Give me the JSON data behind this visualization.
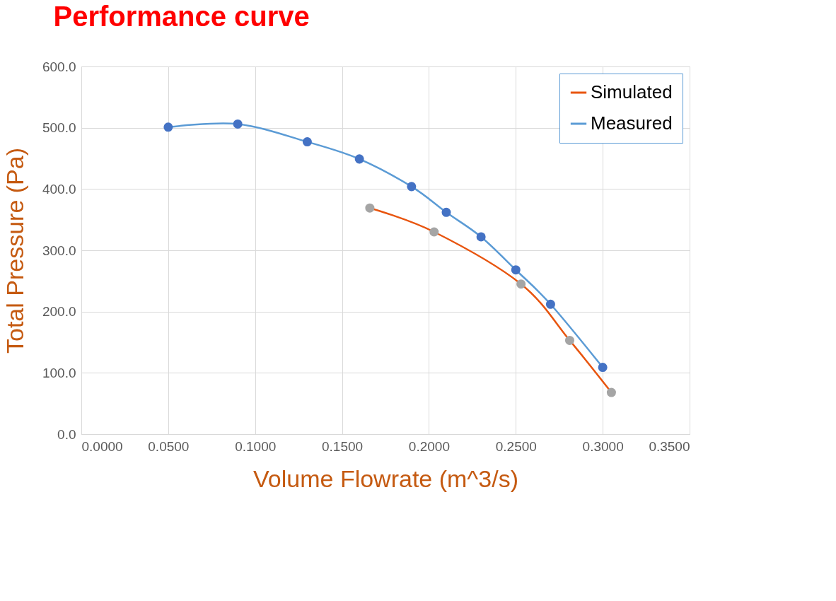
{
  "chart_data": {
    "type": "line",
    "title": "Performance curve",
    "xlabel": "Volume Flowrate (m^3/s)",
    "ylabel": "Total Pressure (Pa)",
    "xlim": [
      0,
      0.35
    ],
    "ylim": [
      0,
      600
    ],
    "xticks": [
      {
        "value": 0,
        "label": "0.0000"
      },
      {
        "value": 0.05,
        "label": "0.0500"
      },
      {
        "value": 0.1,
        "label": "0.1000"
      },
      {
        "value": 0.15,
        "label": "0.1500"
      },
      {
        "value": 0.2,
        "label": "0.2000"
      },
      {
        "value": 0.25,
        "label": "0.2500"
      },
      {
        "value": 0.3,
        "label": "0.3000"
      },
      {
        "value": 0.35,
        "label": "0.3500"
      }
    ],
    "yticks": [
      {
        "value": 0,
        "label": "0.0"
      },
      {
        "value": 100,
        "label": "100.0"
      },
      {
        "value": 200,
        "label": "200.0"
      },
      {
        "value": 300,
        "label": "300.0"
      },
      {
        "value": 400,
        "label": "400.0"
      },
      {
        "value": 500,
        "label": "500.0"
      },
      {
        "value": 600,
        "label": "600.0"
      }
    ],
    "grid": true,
    "legend": "top right",
    "series": [
      {
        "name": "Simulated",
        "color": "#e8550f",
        "marker": "none",
        "x": [
          0.166,
          0.203,
          0.253,
          0.281,
          0.305
        ],
        "values": [
          369,
          330,
          245,
          153,
          68
        ]
      },
      {
        "name": "Measured",
        "color": "#5b9bd5",
        "marker": "none",
        "x": [
          0.05,
          0.09,
          0.13,
          0.16,
          0.19,
          0.21,
          0.23,
          0.25,
          0.27,
          0.3
        ],
        "values": [
          501,
          506,
          477,
          449,
          404,
          362,
          322,
          268,
          212,
          109
        ]
      },
      {
        "type": "scatter",
        "color": "#a5a5a5",
        "marker": "circle",
        "x": [
          0.166,
          0.203,
          0.253,
          0.281,
          0.305
        ],
        "values": [
          369,
          330,
          245,
          153,
          68
        ]
      },
      {
        "type": "scatter",
        "color": "#4472c4",
        "marker": "circle",
        "x": [
          0.05,
          0.09,
          0.13,
          0.16,
          0.19,
          0.21,
          0.23,
          0.25,
          0.27,
          0.3
        ],
        "values": [
          501,
          506,
          477,
          449,
          404,
          362,
          322,
          268,
          212,
          109
        ]
      }
    ]
  }
}
